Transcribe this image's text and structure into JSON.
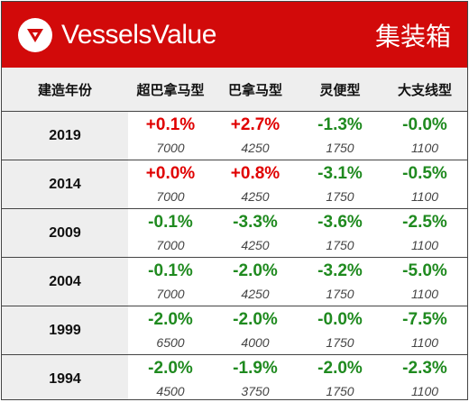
{
  "brand": {
    "name": "VesselsValue",
    "logo_icon": "vesselsvalue-logo-icon"
  },
  "category": "集装箱",
  "colors": {
    "banner": "#d20a0a",
    "positive": "#e00000",
    "negative": "#1f8a1f",
    "header_bg": "#eeeeee"
  },
  "columns": [
    "建造年份",
    "超巴拿马型",
    "巴拿马型",
    "灵便型",
    "大支线型"
  ],
  "rows": [
    {
      "year": "2019",
      "cells": [
        {
          "change": "+0.1%",
          "value": "7000"
        },
        {
          "change": "+2.7%",
          "value": "4250"
        },
        {
          "change": "-1.3%",
          "value": "1750"
        },
        {
          "change": "-0.0%",
          "value": "1100"
        }
      ]
    },
    {
      "year": "2014",
      "cells": [
        {
          "change": "+0.0%",
          "value": "7000"
        },
        {
          "change": "+0.8%",
          "value": "4250"
        },
        {
          "change": "-3.1%",
          "value": "1750"
        },
        {
          "change": "-0.5%",
          "value": "1100"
        }
      ]
    },
    {
      "year": "2009",
      "cells": [
        {
          "change": "-0.1%",
          "value": "7000"
        },
        {
          "change": "-3.3%",
          "value": "4250"
        },
        {
          "change": "-3.6%",
          "value": "1750"
        },
        {
          "change": "-2.5%",
          "value": "1100"
        }
      ]
    },
    {
      "year": "2004",
      "cells": [
        {
          "change": "-0.1%",
          "value": "7000"
        },
        {
          "change": "-2.0%",
          "value": "4250"
        },
        {
          "change": "-3.2%",
          "value": "1750"
        },
        {
          "change": "-5.0%",
          "value": "1100"
        }
      ]
    },
    {
      "year": "1999",
      "cells": [
        {
          "change": "-2.0%",
          "value": "6500"
        },
        {
          "change": "-2.0%",
          "value": "4000"
        },
        {
          "change": "-0.0%",
          "value": "1750"
        },
        {
          "change": "-7.5%",
          "value": "1100"
        }
      ]
    },
    {
      "year": "1994",
      "cells": [
        {
          "change": "-2.0%",
          "value": "4500"
        },
        {
          "change": "-1.9%",
          "value": "3750"
        },
        {
          "change": "-2.0%",
          "value": "1750"
        },
        {
          "change": "-2.3%",
          "value": "1100"
        }
      ]
    }
  ]
}
